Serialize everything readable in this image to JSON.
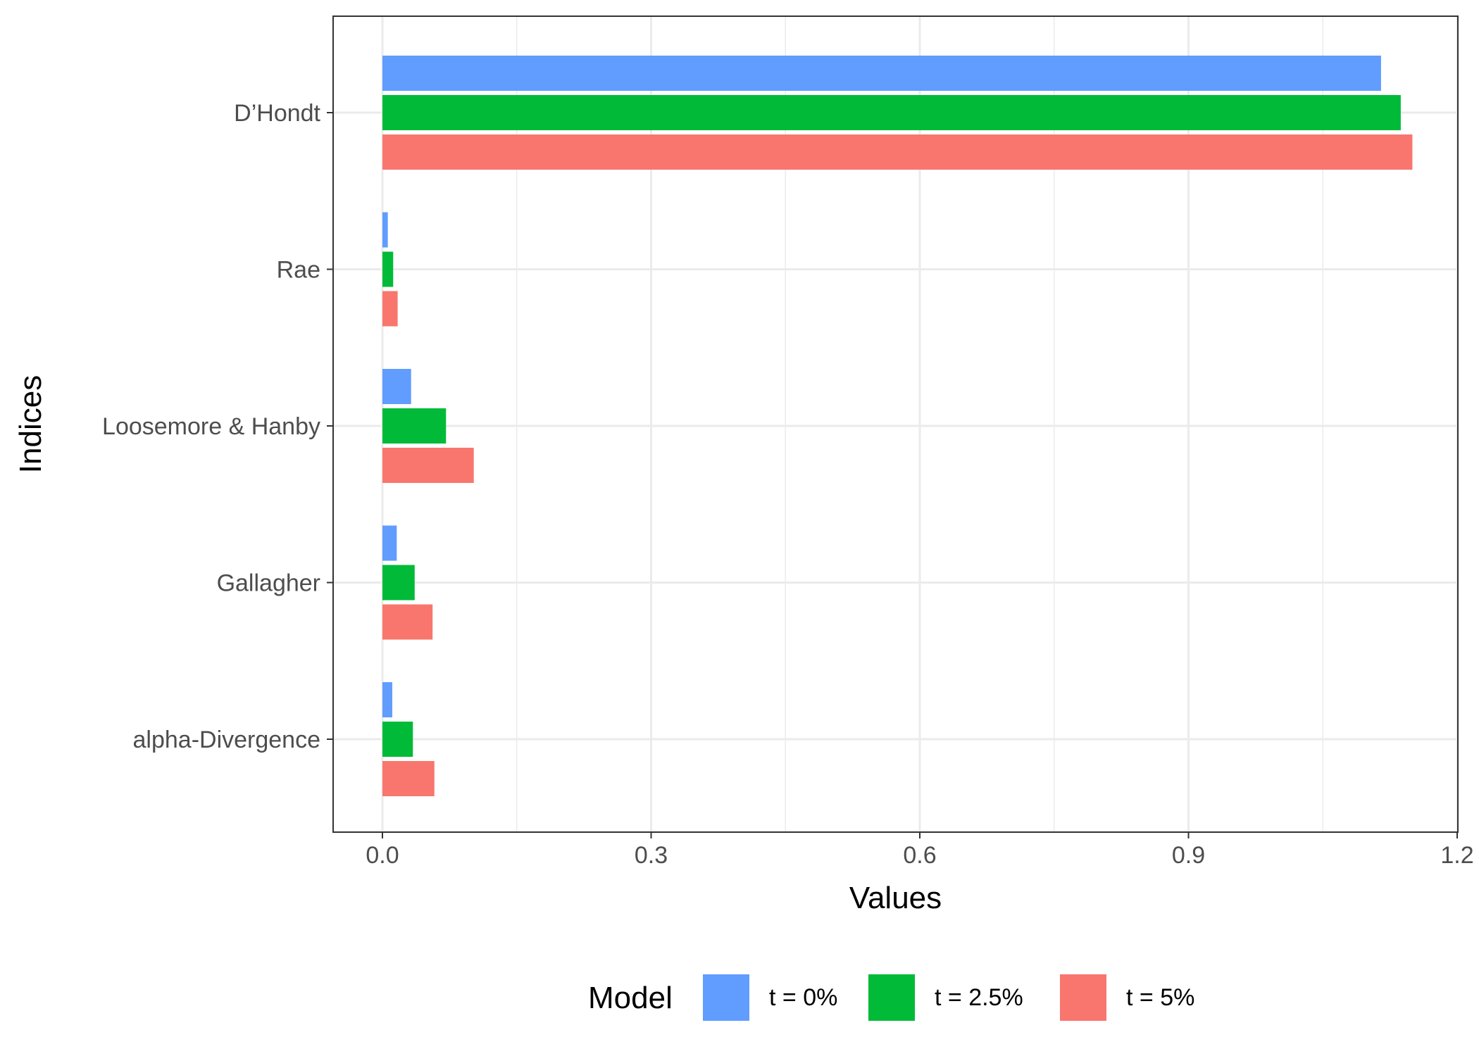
{
  "chart_data": {
    "type": "bar",
    "orientation": "horizontal",
    "xlabel": "Values",
    "ylabel": "Indices",
    "xlim": [
      -0.055,
      1.2
    ],
    "x_ticks": [
      "0.0",
      "0.3",
      "0.6",
      "0.9",
      "1.2"
    ],
    "x_tick_values": [
      0,
      0.3,
      0.6,
      0.9,
      1.2
    ],
    "categories": [
      "D’Hondt",
      "Rae",
      "Loosemore & Hanby",
      "Gallagher",
      "alpha-Divergence"
    ],
    "series": [
      {
        "name": "t = 0%",
        "color": "#619CFF",
        "values": [
          1.115,
          0.006,
          0.032,
          0.016,
          0.011
        ]
      },
      {
        "name": "t = 2.5%",
        "color": "#00BA38",
        "values": [
          1.137,
          0.012,
          0.071,
          0.036,
          0.034
        ]
      },
      {
        "name": "t = 5%",
        "color": "#F8766D",
        "values": [
          1.15,
          0.017,
          0.102,
          0.056,
          0.058
        ]
      }
    ],
    "grid": true,
    "legend": {
      "title": "Model",
      "position": "bottom"
    }
  }
}
